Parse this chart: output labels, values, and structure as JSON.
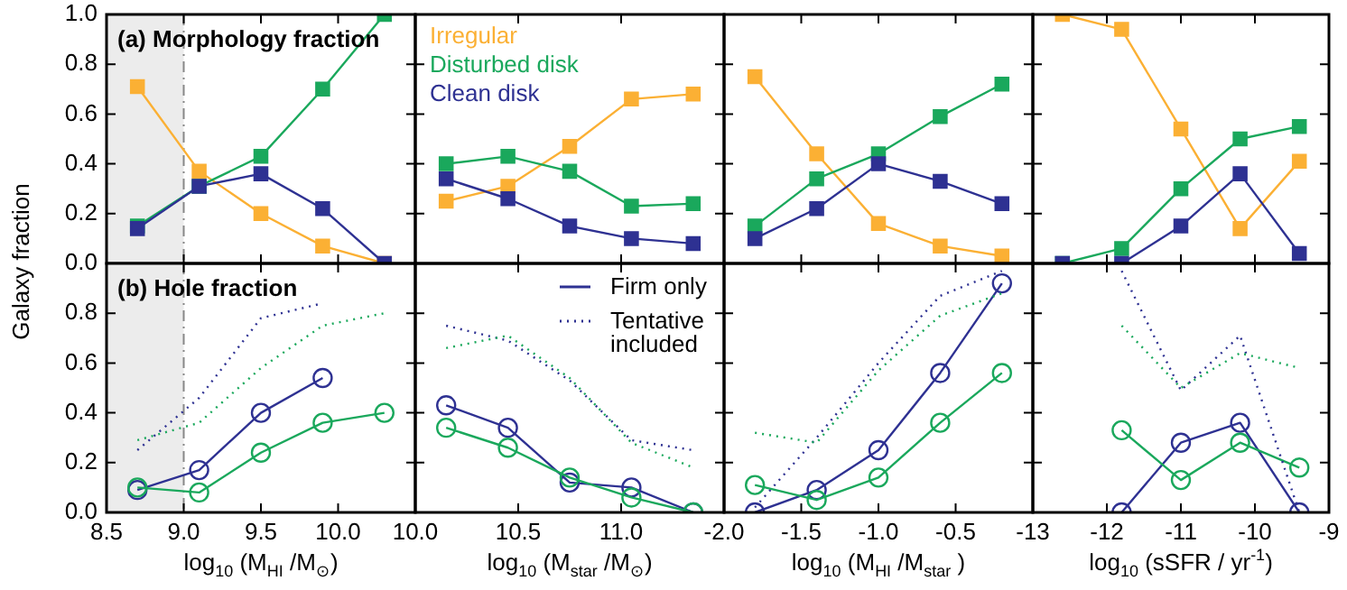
{
  "chart_data": [
    {
      "type": "line",
      "ylabel": "Galaxy fraction",
      "annotations": [
        "(a) Morphology fraction"
      ],
      "x": [
        8.7,
        9.1,
        9.5,
        9.9,
        10.3
      ],
      "xlim": [
        8.5,
        10.5
      ],
      "xticks": [
        {
          "value": 8.5,
          "label": null
        },
        {
          "value": 9,
          "label": null
        },
        {
          "value": 9.5,
          "label": null
        },
        {
          "value": 10,
          "label": null
        }
      ],
      "ylim": [
        0,
        1
      ],
      "yticks": [
        {
          "value": 0,
          "label": "0.0"
        },
        0.2,
        0.4,
        0.6,
        0.8,
        {
          "value": 1,
          "label": "1.0"
        }
      ],
      "tick_labels": "y",
      "bands": [
        {
          "axis": "x",
          "from": 8.5,
          "to": 9.0,
          "color": "#ececec"
        }
      ],
      "ref_lines": [
        {
          "axis": "x",
          "value": 9.0,
          "color": "#888888",
          "line_style": "dashed"
        }
      ],
      "marker": "square",
      "series": [
        {
          "color": "#fbb034",
          "values": [
            0.71,
            0.37,
            0.2,
            0.07,
            0.0
          ]
        },
        {
          "color": "#1aa85c",
          "values": [
            0.15,
            0.31,
            0.43,
            0.7,
            1.0
          ]
        },
        {
          "color": "#2e3192",
          "values": [
            0.14,
            0.31,
            0.36,
            0.22,
            0.0
          ]
        }
      ]
    },
    {
      "type": "line",
      "x": [
        10.15,
        10.45,
        10.75,
        11.05,
        11.35
      ],
      "xlim": [
        10,
        11.5
      ],
      "xticks": [
        {
          "value": 10,
          "label": null
        },
        {
          "value": 10.5,
          "label": null
        },
        {
          "value": 11,
          "label": null
        }
      ],
      "ylim": [
        0,
        1
      ],
      "yticks": [
        {
          "value": 0,
          "label": null
        },
        {
          "value": 0.2,
          "label": null
        },
        {
          "value": 0.4,
          "label": null
        },
        {
          "value": 0.6,
          "label": null
        },
        {
          "value": 0.8,
          "label": null
        },
        {
          "value": 1,
          "label": null
        }
      ],
      "tick_labels": false,
      "legend": "top left",
      "marker": "square",
      "series": [
        {
          "name": "Irregular",
          "color": "#fbb034",
          "values": [
            0.25,
            0.31,
            0.47,
            0.66,
            0.68
          ]
        },
        {
          "name": "Disturbed disk",
          "color": "#1aa85c",
          "values": [
            0.4,
            0.43,
            0.37,
            0.23,
            0.24
          ]
        },
        {
          "name": "Clean disk",
          "color": "#2e3192",
          "values": [
            0.34,
            0.26,
            0.15,
            0.1,
            0.08
          ]
        }
      ]
    },
    {
      "type": "line",
      "x": [
        -1.8,
        -1.4,
        -1.0,
        -0.6,
        -0.2
      ],
      "xlim": [
        -2,
        0
      ],
      "xticks": [
        {
          "value": -2,
          "label": null
        },
        {
          "value": -1.5,
          "label": null
        },
        {
          "value": -1,
          "label": null
        },
        {
          "value": -0.5,
          "label": null
        }
      ],
      "ylim": [
        0,
        1
      ],
      "yticks": [
        {
          "value": 0,
          "label": null
        },
        {
          "value": 0.2,
          "label": null
        },
        {
          "value": 0.4,
          "label": null
        },
        {
          "value": 0.6,
          "label": null
        },
        {
          "value": 0.8,
          "label": null
        },
        {
          "value": 1,
          "label": null
        }
      ],
      "tick_labels": false,
      "marker": "square",
      "series": [
        {
          "color": "#fbb034",
          "values": [
            0.75,
            0.44,
            0.16,
            0.07,
            0.03
          ]
        },
        {
          "color": "#1aa85c",
          "values": [
            0.15,
            0.34,
            0.44,
            0.59,
            0.72
          ]
        },
        {
          "color": "#2e3192",
          "values": [
            0.1,
            0.22,
            0.4,
            0.33,
            0.24
          ]
        }
      ]
    },
    {
      "type": "line",
      "x": [
        -12.6,
        -11.8,
        -11.0,
        -10.2,
        -9.4
      ],
      "xlim": [
        -13,
        -9
      ],
      "xticks": [
        {
          "value": -13,
          "label": null
        },
        {
          "value": -12,
          "label": null
        },
        {
          "value": -11,
          "label": null
        },
        {
          "value": -10,
          "label": null
        },
        {
          "value": -9,
          "label": null
        }
      ],
      "ylim": [
        0,
        1
      ],
      "yticks": [
        {
          "value": 0,
          "label": null
        },
        {
          "value": 0.2,
          "label": null
        },
        {
          "value": 0.4,
          "label": null
        },
        {
          "value": 0.6,
          "label": null
        },
        {
          "value": 0.8,
          "label": null
        },
        {
          "value": 1,
          "label": null
        }
      ],
      "tick_labels": false,
      "marker": "square",
      "series": [
        {
          "color": "#fbb034",
          "values": [
            1.0,
            0.94,
            0.54,
            0.14,
            0.41
          ]
        },
        {
          "color": "#1aa85c",
          "values": [
            0.0,
            0.06,
            0.3,
            0.5,
            0.55
          ]
        },
        {
          "color": "#2e3192",
          "values": [
            0.0,
            0.0,
            0.15,
            0.36,
            0.04
          ]
        }
      ]
    },
    {
      "type": "line",
      "annotations": [
        "(b) Hole fraction"
      ],
      "xlabel": "log$_{10}$ (M$_{HI}$ /M$_{⊙}$)",
      "x": [
        8.7,
        9.1,
        9.5,
        9.9,
        10.3
      ],
      "xlim": [
        8.5,
        10.5
      ],
      "xticks": [
        8.5,
        {
          "value": 9,
          "label": "9.0"
        },
        9.5,
        {
          "value": 10,
          "label": "10.0"
        }
      ],
      "ylim": [
        0,
        1
      ],
      "yticks": [
        {
          "value": 0,
          "label": "0.0"
        },
        0.2,
        0.4,
        0.6,
        0.8
      ],
      "bands": [
        {
          "axis": "x",
          "from": 8.5,
          "to": 9.0,
          "color": "#ececec"
        }
      ],
      "ref_lines": [
        {
          "axis": "x",
          "value": 9.0,
          "color": "#888888",
          "line_style": "dashed"
        }
      ],
      "series": [
        {
          "color": "#2e3192",
          "marker": "circle",
          "line_style": "solid",
          "values": [
            0.09,
            0.17,
            0.4,
            0.54,
            null
          ]
        },
        {
          "color": "#1aa85c",
          "marker": "circle",
          "line_style": "solid",
          "values": [
            0.1,
            0.08,
            0.24,
            0.36,
            0.4
          ]
        },
        {
          "color": "#2e3192",
          "marker": "none",
          "line_style": "dotted",
          "values": [
            0.25,
            0.46,
            0.78,
            0.84,
            null
          ]
        },
        {
          "color": "#1aa85c",
          "marker": "none",
          "line_style": "dotted",
          "values": [
            0.29,
            0.36,
            0.58,
            0.75,
            0.8
          ]
        }
      ]
    },
    {
      "type": "line",
      "xlabel": "log$_{10}$ (M$_{star}$ /M$_{⊙}$)",
      "x": [
        10.15,
        10.45,
        10.75,
        11.05,
        11.35
      ],
      "xlim": [
        10,
        11.5
      ],
      "xticks": [
        {
          "value": 10,
          "label": "10.0"
        },
        10.5,
        {
          "value": 11,
          "label": "11.0"
        }
      ],
      "ylim": [
        0,
        1
      ],
      "yticks": [
        {
          "value": 0,
          "label": null
        },
        {
          "value": 0.2,
          "label": null
        },
        {
          "value": 0.4,
          "label": null
        },
        {
          "value": 0.6,
          "label": null
        },
        {
          "value": 0.8,
          "label": null
        }
      ],
      "tick_labels": "x",
      "legend": "top right",
      "series": [
        {
          "name": "Firm only",
          "color": "#2e3192",
          "marker": "circle",
          "line_style": "solid",
          "values": [
            0.43,
            0.34,
            0.12,
            0.1,
            0.0
          ]
        },
        {
          "color": "#1aa85c",
          "marker": "circle",
          "line_style": "solid",
          "values": [
            0.34,
            0.26,
            0.14,
            0.06,
            0.0
          ]
        },
        {
          "name": "Tentative included",
          "color": "#2e3192",
          "marker": "none",
          "line_style": "dotted",
          "values": [
            0.75,
            0.69,
            0.53,
            0.29,
            0.25
          ]
        },
        {
          "color": "#1aa85c",
          "marker": "none",
          "line_style": "dotted",
          "values": [
            0.66,
            0.71,
            0.54,
            0.28,
            0.18
          ]
        }
      ]
    },
    {
      "type": "line",
      "xlabel": "log$_{10}$ (M$_{HI}$ /M$_{star}$ )",
      "x": [
        -1.8,
        -1.4,
        -1.0,
        -0.6,
        -0.2
      ],
      "xlim": [
        -2,
        0
      ],
      "xticks": [
        {
          "value": -2,
          "label": "-2.0"
        },
        -1.5,
        {
          "value": -1,
          "label": "-1.0"
        },
        -0.5
      ],
      "ylim": [
        0,
        1
      ],
      "yticks": [
        {
          "value": 0,
          "label": null
        },
        {
          "value": 0.2,
          "label": null
        },
        {
          "value": 0.4,
          "label": null
        },
        {
          "value": 0.6,
          "label": null
        },
        {
          "value": 0.8,
          "label": null
        }
      ],
      "tick_labels": "x",
      "series": [
        {
          "color": "#2e3192",
          "marker": "circle",
          "line_style": "solid",
          "values": [
            0.0,
            0.09,
            0.25,
            0.56,
            0.92
          ]
        },
        {
          "color": "#1aa85c",
          "marker": "circle",
          "line_style": "solid",
          "values": [
            0.11,
            0.05,
            0.14,
            0.36,
            0.56
          ]
        },
        {
          "color": "#2e3192",
          "marker": "none",
          "line_style": "dotted",
          "values": [
            0.02,
            0.3,
            0.6,
            0.87,
            0.97
          ]
        },
        {
          "color": "#1aa85c",
          "marker": "none",
          "line_style": "dotted",
          "values": [
            0.32,
            0.28,
            0.57,
            0.79,
            0.88
          ]
        }
      ]
    },
    {
      "type": "line",
      "xlabel": "log$_{10}$ (sSFR / yr$^{-1}$)",
      "x": [
        -11.8,
        -11.0,
        -10.2,
        -9.4
      ],
      "xlim": [
        -13,
        -9
      ],
      "xticks": [
        -13,
        -12,
        -11,
        -10,
        -9
      ],
      "ylim": [
        0,
        1
      ],
      "yticks": [
        {
          "value": 0,
          "label": null
        },
        {
          "value": 0.2,
          "label": null
        },
        {
          "value": 0.4,
          "label": null
        },
        {
          "value": 0.6,
          "label": null
        },
        {
          "value": 0.8,
          "label": null
        }
      ],
      "tick_labels": "x",
      "series": [
        {
          "color": "#2e3192",
          "marker": "circle",
          "line_style": "solid",
          "values": [
            0.0,
            0.28,
            0.36,
            0.0
          ]
        },
        {
          "color": "#1aa85c",
          "marker": "circle",
          "line_style": "solid",
          "values": [
            0.33,
            0.13,
            0.28,
            0.18
          ]
        },
        {
          "color": "#2e3192",
          "marker": "none",
          "line_style": "dotted",
          "values": [
            0.97,
            0.49,
            0.71,
            0.0
          ]
        },
        {
          "color": "#1aa85c",
          "marker": "none",
          "line_style": "dotted",
          "values": [
            0.75,
            0.5,
            0.64,
            0.58
          ]
        }
      ]
    }
  ]
}
